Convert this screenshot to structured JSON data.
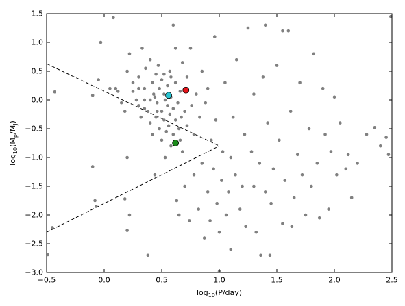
{
  "chart_data": {
    "type": "scatter",
    "xlabel": [
      "log",
      "10",
      "(P/day)"
    ],
    "ylabel": [
      "log",
      "10",
      "(M",
      "p",
      "/M",
      "J",
      ")"
    ],
    "xlim": [
      -0.5,
      2.5
    ],
    "ylim": [
      -3.0,
      1.5
    ],
    "xticks": [
      {
        "value": -0.5,
        "label": "−0.5"
      },
      {
        "value": 0,
        "label": "0.0"
      },
      0.5,
      {
        "value": 1,
        "label": "1.0"
      },
      1.5,
      {
        "value": 2,
        "label": "2.0"
      },
      2.5
    ],
    "yticks": [
      1.5,
      {
        "value": 1,
        "label": "1.0"
      },
      0.5,
      {
        "value": 0,
        "label": "0.0"
      },
      {
        "value": -0.5,
        "label": "−0.5"
      },
      {
        "value": -1,
        "label": "−1.0"
      },
      {
        "value": -1.5,
        "label": "−1.5"
      },
      {
        "value": -2,
        "label": "−2.0"
      },
      {
        "value": -2.5,
        "label": "−2.5"
      },
      {
        "value": -3,
        "label": "−3.0"
      }
    ],
    "grid": false,
    "lines": [
      {
        "color": "#000000",
        "linestyle": "dashed",
        "x": [
          -0.5,
          1.0
        ],
        "y": [
          0.63,
          -0.8
        ]
      },
      {
        "color": "#000000",
        "linestyle": "dashed",
        "x": [
          -0.5,
          1.0
        ],
        "y": [
          -2.3,
          -0.8
        ]
      }
    ],
    "series": [
      {
        "color": "#808080",
        "x": [
          -0.49,
          -0.45,
          -0.43,
          -0.1,
          -0.08,
          -0.07,
          -0.1,
          -0.05,
          -0.03,
          0.05,
          0.08,
          0.1,
          0.12,
          0.15,
          0.18,
          0.2,
          0.2,
          0.18,
          0.22,
          0.2,
          0.22,
          0.25,
          0.25,
          0.28,
          0.3,
          0.3,
          0.32,
          0.33,
          0.35,
          0.35,
          0.36,
          0.38,
          0.38,
          0.4,
          0.4,
          0.4,
          0.42,
          0.42,
          0.43,
          0.44,
          0.45,
          0.45,
          0.46,
          0.47,
          0.48,
          0.48,
          0.5,
          0.5,
          0.5,
          0.52,
          0.52,
          0.53,
          0.53,
          0.54,
          0.55,
          0.55,
          0.56,
          0.57,
          0.57,
          0.58,
          0.58,
          0.6,
          0.6,
          0.6,
          0.62,
          0.62,
          0.63,
          0.64,
          0.65,
          0.65,
          0.66,
          0.67,
          0.68,
          0.68,
          0.7,
          0.7,
          0.72,
          0.72,
          0.74,
          0.75,
          0.76,
          0.78,
          0.78,
          0.8,
          0.82,
          0.83,
          0.85,
          0.85,
          0.87,
          0.88,
          0.9,
          0.9,
          0.92,
          0.93,
          0.95,
          0.96,
          0.97,
          0.98,
          1.0,
          1.0,
          1.02,
          1.03,
          1.05,
          1.06,
          1.08,
          1.1,
          1.1,
          1.12,
          1.14,
          1.15,
          1.18,
          1.2,
          1.22,
          1.23,
          1.25,
          1.28,
          1.3,
          1.3,
          1.32,
          1.35,
          1.36,
          1.38,
          1.4,
          1.42,
          1.44,
          1.45,
          1.47,
          1.5,
          1.52,
          1.55,
          1.57,
          1.6,
          1.62,
          1.63,
          1.65,
          1.68,
          1.7,
          1.72,
          1.75,
          1.78,
          1.8,
          1.82,
          1.85,
          1.87,
          1.9,
          1.92,
          1.95,
          1.97,
          2.0,
          2.02,
          2.05,
          2.1,
          2.12,
          2.15,
          2.2,
          2.28,
          2.35,
          2.4,
          2.45,
          2.47,
          2.49,
          1.4,
          1.55,
          0.62,
          0.3,
          0.35,
          0.46,
          0.52,
          0.44,
          0.58,
          0.66
        ],
        "y": [
          -2.69,
          -2.22,
          0.14,
          -1.16,
          -1.75,
          -1.85,
          0.08,
          0.35,
          1.0,
          0.2,
          1.43,
          0.2,
          0.15,
          -0.05,
          -0.2,
          0.5,
          -1.0,
          -1.72,
          -2.0,
          -2.27,
          0.8,
          0.3,
          0.15,
          0.0,
          -0.1,
          0.4,
          -0.3,
          0.9,
          0.2,
          -0.15,
          0.55,
          -0.2,
          -2.7,
          0.0,
          -0.4,
          0.7,
          0.3,
          -0.6,
          0.1,
          -1.3,
          -0.3,
          0.45,
          -0.05,
          0.6,
          -0.5,
          0.2,
          -0.2,
          0.35,
          -0.7,
          0.1,
          -0.35,
          0.0,
          -1.0,
          -0.55,
          0.25,
          -0.1,
          -0.45,
          0.5,
          -0.25,
          -0.8,
          0.05,
          -0.15,
          -0.6,
          1.3,
          -0.35,
          0.3,
          -1.75,
          -0.05,
          -0.5,
          -2.0,
          0.15,
          -0.3,
          -0.9,
          0.65,
          -0.2,
          -1.5,
          -0.45,
          0.4,
          -2.1,
          0.9,
          -0.1,
          -1.3,
          -0.6,
          0.1,
          -1.9,
          -0.3,
          0.5,
          -1.1,
          -2.4,
          -0.05,
          -1.6,
          0.2,
          -2.1,
          -0.7,
          -1.2,
          1.1,
          -0.35,
          -1.8,
          -2.3,
          -2.98,
          -1.4,
          -0.9,
          0.3,
          -2.0,
          -1.6,
          -2.6,
          -1.0,
          -0.3,
          -1.3,
          0.7,
          -1.9,
          -1.5,
          -0.6,
          -2.2,
          1.25,
          -0.9,
          -1.5,
          0.1,
          -2.3,
          -1.1,
          -2.7,
          0.4,
          -1.6,
          -0.4,
          -2.7,
          -1.8,
          -1.2,
          0.6,
          -0.7,
          -2.15,
          -1.4,
          1.2,
          -0.2,
          -2.2,
          -1.7,
          -0.95,
          0.3,
          -1.3,
          -2.0,
          -0.5,
          -1.5,
          0.8,
          -1.1,
          -2.05,
          0.2,
          -0.6,
          -1.9,
          -0.9,
          0.05,
          -1.3,
          -0.4,
          -1.2,
          -0.95,
          -1.7,
          -1.1,
          -0.6,
          -0.48,
          -0.8,
          -0.65,
          -0.95,
          1.45,
          1.3,
          1.2,
          0.9,
          0.2,
          0.0,
          -0.2,
          0.45,
          0.05,
          0.4,
          -0.7
        ]
      },
      {
        "color": "#29c5d1",
        "edgecolor": "#000000",
        "x": [
          0.56
        ],
        "y": [
          0.08
        ]
      },
      {
        "color": "#e8141b",
        "edgecolor": "#000000",
        "x": [
          0.71
        ],
        "y": [
          0.17
        ]
      },
      {
        "color": "#1a8a1a",
        "edgecolor": "#000000",
        "x": [
          0.62
        ],
        "y": [
          -0.75
        ]
      }
    ]
  }
}
